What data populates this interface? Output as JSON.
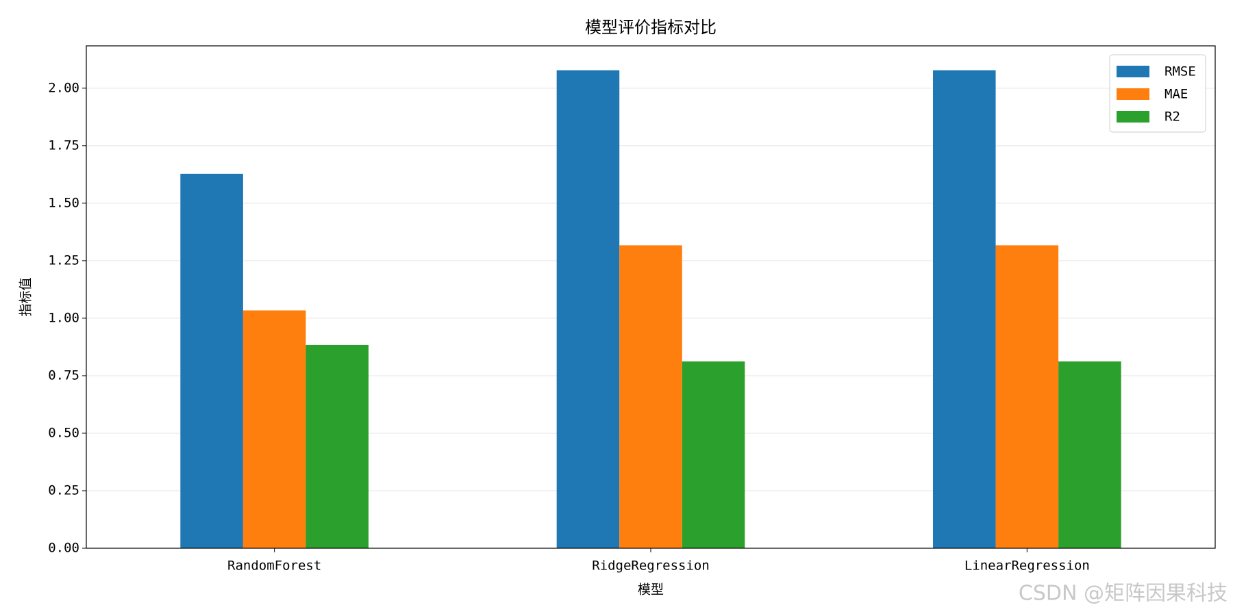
{
  "chart_data": {
    "type": "bar",
    "title": "模型评价指标对比",
    "x_label": "模型",
    "y_label": "指标值",
    "categories": [
      "RandomForest",
      "RidgeRegression",
      "LinearRegression"
    ],
    "series": [
      {
        "name": "RMSE",
        "color": "#1f77b4",
        "values": [
          1.628,
          2.078,
          2.078
        ]
      },
      {
        "name": "MAE",
        "color": "#ff7f0e",
        "values": [
          1.034,
          1.317,
          1.317
        ]
      },
      {
        "name": "R2",
        "color": "#2ca02c",
        "values": [
          0.884,
          0.812,
          0.812
        ]
      }
    ],
    "ylim": [
      0,
      2.184
    ],
    "yticks": [
      {
        "value": 0,
        "label": "0.00"
      },
      {
        "value": 0.25,
        "label": "0.25"
      },
      {
        "value": 0.5,
        "label": "0.50"
      },
      {
        "value": 0.75,
        "label": "0.75"
      },
      {
        "value": 1,
        "label": "1.00"
      },
      {
        "value": 1.25,
        "label": "1.25"
      },
      {
        "value": 1.5,
        "label": "1.50"
      },
      {
        "value": 1.75,
        "label": "1.75"
      },
      {
        "value": 2,
        "label": "2.00"
      }
    ],
    "grid": true,
    "legend": "upper right",
    "watermark": "CSDN @矩阵因果科技"
  }
}
